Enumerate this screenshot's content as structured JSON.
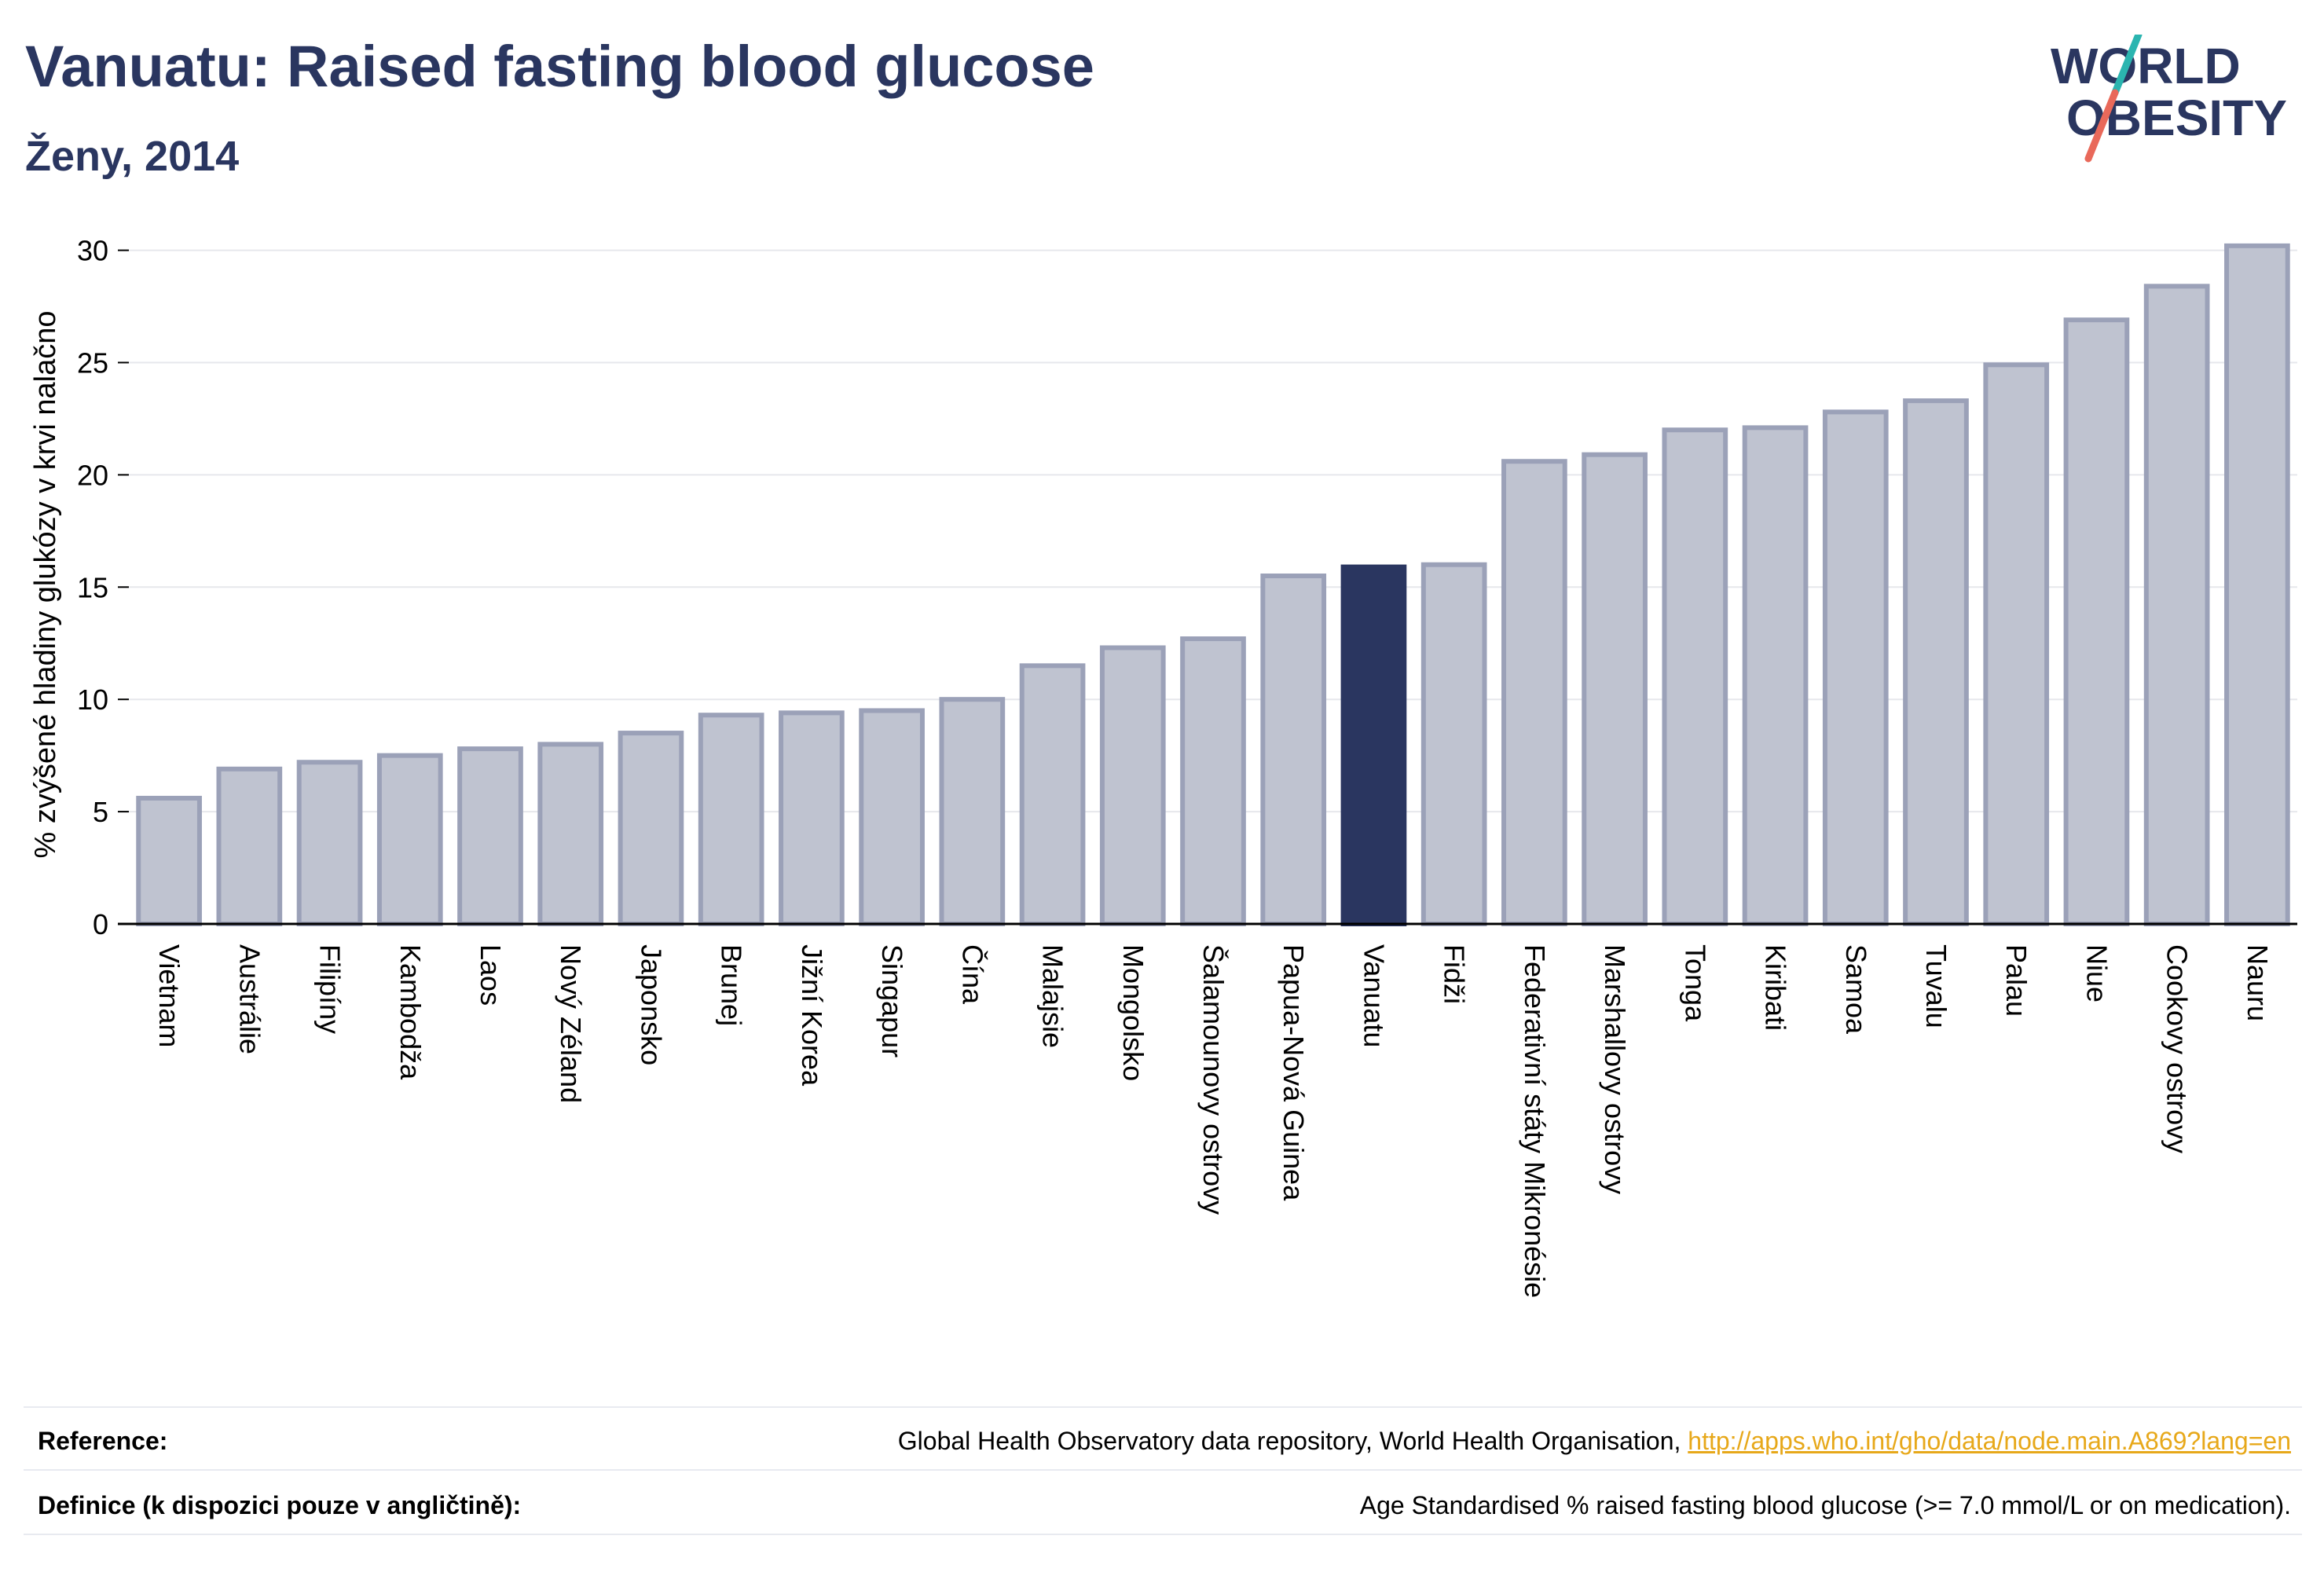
{
  "header": {
    "title": "Vanuatu: Raised fasting blood glucose",
    "subtitle": "Ženy, 2014",
    "logo_line1": "WORLD",
    "logo_line2": "OBESITY"
  },
  "colors": {
    "bar": "#bfc3d0",
    "bar_stroke": "#9ba1b8",
    "highlight": "#2a3660",
    "grid": "#e6e7ec",
    "link": "#e7a81a"
  },
  "chart_data": {
    "type": "bar",
    "title": "Vanuatu: Raised fasting blood glucose",
    "subtitle": "Ženy, 2014",
    "xlabel": "",
    "ylabel": "% zvýšené hladiny glukózy v krvi nalačno",
    "ylim": [
      0,
      31
    ],
    "yticks": [
      0,
      5,
      10,
      15,
      20,
      25,
      30
    ],
    "grid": true,
    "highlight": "Vanuatu",
    "categories": [
      "Vietnam",
      "Austrálie",
      "Filipíny",
      "Kambodža",
      "Laos",
      "Nový Zéland",
      "Japonsko",
      "Brunej",
      "Jižní Korea",
      "Singapur",
      "Čína",
      "Malajsie",
      "Mongolsko",
      "Šalamounovy ostrovy",
      "Papua-Nová Guinea",
      "Vanuatu",
      "Fidži",
      "Federativní státy Mikronésie",
      "Marshallovy ostrovy",
      "Tonga",
      "Kiribati",
      "Samoa",
      "Tuvalu",
      "Palau",
      "Niue",
      "Cookovy ostrovy",
      "Nauru"
    ],
    "values": [
      5.6,
      6.9,
      7.2,
      7.5,
      7.8,
      8.0,
      8.5,
      9.3,
      9.4,
      9.5,
      10.0,
      11.5,
      12.3,
      12.7,
      15.5,
      15.9,
      16.0,
      20.6,
      20.9,
      22.0,
      22.1,
      22.8,
      23.3,
      24.9,
      26.9,
      28.4,
      30.2
    ]
  },
  "footer": {
    "reference_label": "Reference:",
    "reference_text": "Global Health Observatory data repository, World Health Organisation, ",
    "reference_link": "http://apps.who.int/gho/data/node.main.A869?lang=en",
    "definition_label": "Definice (k dispozici pouze v angličtině):",
    "definition_text": "Age Standardised % raised fasting blood glucose (>= 7.0 mmol/L or on medication)."
  }
}
